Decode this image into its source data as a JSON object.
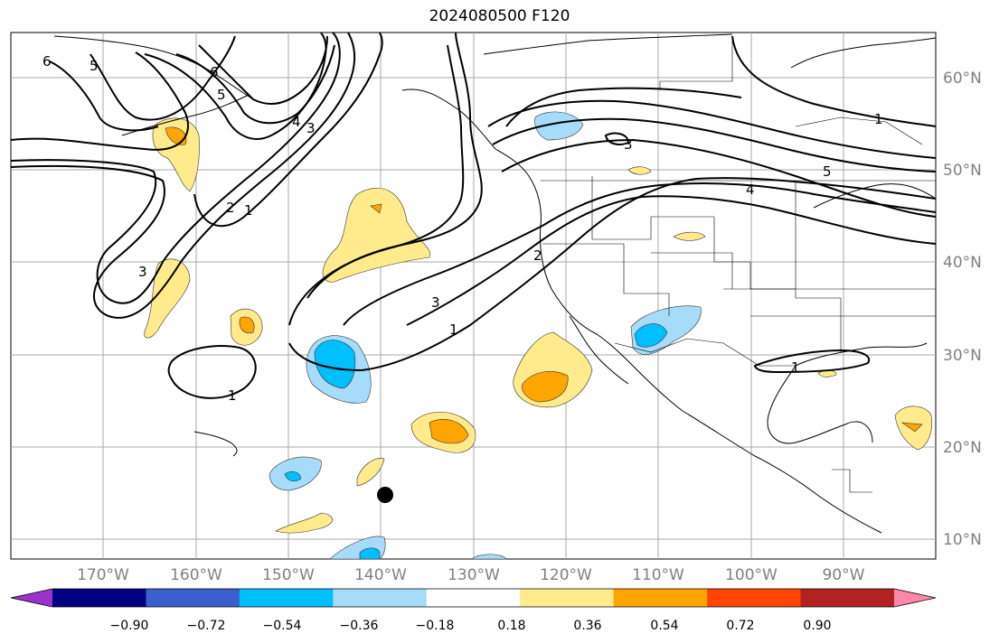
{
  "title": "2024080500 F120",
  "map": {
    "lon_labels": [
      "170°W",
      "160°W",
      "150°W",
      "140°W",
      "130°W",
      "120°W",
      "110°W",
      "100°W",
      "90°W"
    ],
    "lat_labels": [
      "60°N",
      "50°N",
      "40°N",
      "30°N",
      "20°N",
      "10°N"
    ],
    "contour_labels": [
      "6",
      "5",
      "6",
      "5",
      "4",
      "3",
      "2",
      "1",
      "3",
      "3",
      "2",
      "1",
      "3",
      "1",
      "5",
      "1",
      "5",
      "4",
      "1"
    ],
    "marker": "storm-center-dot"
  },
  "colorbar": {
    "colors": [
      "#9933cc",
      "#000080",
      "#3a5fcd",
      "#00bfff",
      "#a6dcfa",
      "#ffffff",
      "#ffea8c",
      "#ffa500",
      "#ff4500",
      "#b22222",
      "#ff88aa"
    ],
    "ticks": [
      "−0.90",
      "−0.72",
      "−0.54",
      "−0.36",
      "−0.18",
      "0.18",
      "0.36",
      "0.54",
      "0.72",
      "0.90"
    ],
    "extend": "both"
  }
}
